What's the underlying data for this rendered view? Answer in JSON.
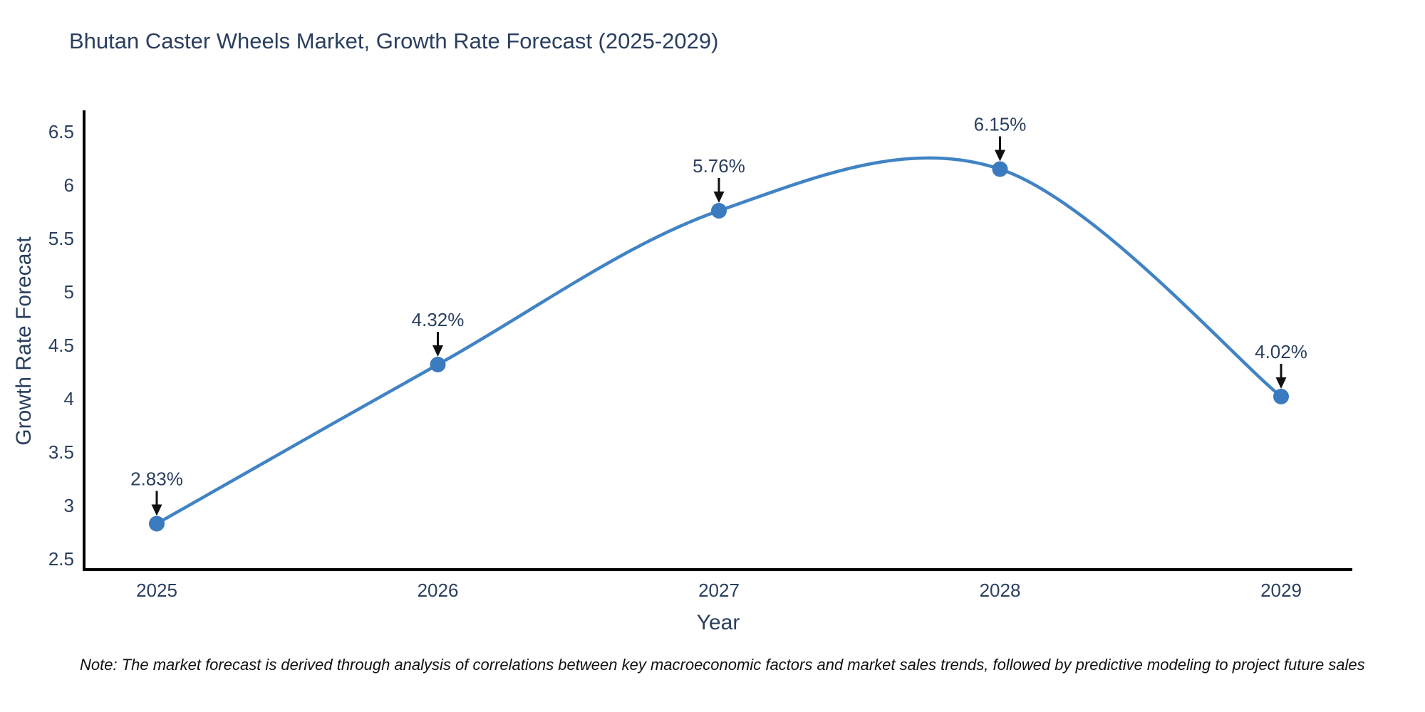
{
  "title": "Bhutan Caster Wheels Market, Growth Rate Forecast (2025-2029)",
  "note": "Note: The market forecast is derived through analysis of correlations between key macroeconomic factors and market sales trends, followed by predictive modeling to project future sales",
  "chart_data": {
    "type": "line",
    "line_shape": "spline",
    "title": "Bhutan Caster Wheels Market, Growth Rate Forecast (2025-2029)",
    "xlabel": "Year",
    "ylabel": "Growth Rate Forecast",
    "categories": [
      "2025",
      "2026",
      "2027",
      "2028",
      "2029"
    ],
    "values": [
      2.83,
      4.32,
      5.76,
      6.15,
      4.02
    ],
    "point_labels": [
      "2.83%",
      "4.32%",
      "5.76%",
      "6.15%",
      "4.02%"
    ],
    "yticks": [
      2.5,
      3,
      3.5,
      4,
      4.5,
      5,
      5.5,
      6,
      6.5
    ],
    "ylim": [
      2.5,
      6.5
    ],
    "grid": "off",
    "legend": "none",
    "markers": "on",
    "annotations": "value labels with down arrows above each point",
    "colors": {
      "line": "#4183c4",
      "marker": "#3a7abf",
      "axis": "#000000",
      "arrow": "#111111",
      "text": "#2a3f5f"
    }
  }
}
